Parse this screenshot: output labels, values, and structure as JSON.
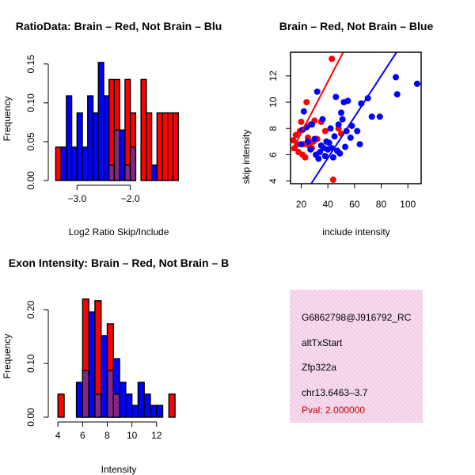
{
  "colors": {
    "red": "#ff0000",
    "blue": "#0000ff",
    "purple": "#8b2a8b",
    "black": "#000000"
  },
  "chart_data": [
    {
      "type": "bar",
      "title": "RatioData: Brain – Red, Not Brain – Blu",
      "xlabel": "Log2 Ratio Skip/Include",
      "ylabel": "Frequency",
      "xlim": [
        -3.45,
        -1.0
      ],
      "ylim": [
        0,
        0.16
      ],
      "xticks": [
        -3.0,
        -2.0
      ],
      "xtick_labels": [
        "−3.0",
        "−2.0"
      ],
      "yticks": [
        0,
        0.05,
        0.1,
        0.15
      ],
      "ytick_labels": [
        "0.00",
        "0.05",
        "0.10",
        "0.15"
      ],
      "bin_edges": [
        -3.4,
        -3.3,
        -3.2,
        -3.1,
        -3.0,
        -2.9,
        -2.8,
        -2.7,
        -2.6,
        -2.5,
        -2.4,
        -2.3,
        -2.2,
        -2.1,
        -2.0,
        -1.9,
        -1.8,
        -1.7,
        -1.6,
        -1.5,
        -1.4,
        -1.3,
        -1.2,
        -1.1
      ],
      "series": [
        {
          "name": "Brain",
          "color": "red",
          "values": [
            0.043,
            0.0,
            0.0,
            0.0,
            0.0,
            0.0,
            0.0,
            0.0,
            0.0,
            0.0,
            0.13,
            0.13,
            0.0,
            0.13,
            0.087,
            0.0,
            0.13,
            0.087,
            0.0,
            0.087,
            0.087,
            0.087,
            0.087
          ]
        },
        {
          "name": "Not Brain",
          "color": "blue",
          "values": [
            0.0,
            0.043,
            0.109,
            0.043,
            0.087,
            0.043,
            0.109,
            0.087,
            0.152,
            0.109,
            0.02,
            0.065,
            0.065,
            0.02,
            0.043,
            0.0,
            0.0,
            0.0,
            0.02,
            0.0,
            0.0,
            0.0,
            0.0
          ]
        }
      ]
    },
    {
      "type": "scatter",
      "title": "Brain – Red, Not Brain – Blue",
      "xlabel": "include intensity",
      "ylabel": "skip intensity",
      "xlim": [
        12,
        110
      ],
      "ylim": [
        3.8,
        13.8
      ],
      "xticks": [
        20,
        40,
        60,
        80,
        100
      ],
      "xtick_labels": [
        "20",
        "40",
        "60",
        "80",
        "100"
      ],
      "yticks": [
        4,
        6,
        8,
        10,
        12
      ],
      "ytick_labels": [
        "4",
        "6",
        "8",
        "10",
        "12"
      ],
      "series": [
        {
          "name": "Brain",
          "color": "red",
          "points": [
            [
              14,
              7.1
            ],
            [
              15,
              6.5
            ],
            [
              16,
              7.5
            ],
            [
              17,
              6.8
            ],
            [
              18,
              6.2
            ],
            [
              19,
              7.8
            ],
            [
              20,
              8.5
            ],
            [
              21,
              6.0
            ],
            [
              22,
              6.8
            ],
            [
              23,
              5.8
            ],
            [
              24,
              10.0
            ],
            [
              25,
              7.3
            ],
            [
              26,
              6.7
            ],
            [
              27,
              8.3
            ],
            [
              28,
              6.5
            ],
            [
              29,
              7.0
            ],
            [
              30,
              8.6
            ],
            [
              32,
              7.2
            ],
            [
              35,
              8.5
            ],
            [
              38,
              7.8
            ],
            [
              43,
              13.3
            ],
            [
              44,
              4.1
            ],
            [
              48,
              8.0
            ],
            [
              50,
              7.6
            ]
          ],
          "fit": [
            [
              13,
              6.3
            ],
            [
              51.5,
              13.8
            ]
          ]
        },
        {
          "name": "Not Brain",
          "color": "blue",
          "points": [
            [
              20,
              6.8
            ],
            [
              21,
              7.9
            ],
            [
              22,
              9.3
            ],
            [
              24,
              8.1
            ],
            [
              25,
              7.0
            ],
            [
              27,
              6.4
            ],
            [
              28,
              8.3
            ],
            [
              30,
              7.2
            ],
            [
              31,
              6.0
            ],
            [
              32,
              10.8
            ],
            [
              33,
              5.7
            ],
            [
              34,
              6.2
            ],
            [
              35,
              6.7
            ],
            [
              36,
              8.7
            ],
            [
              37,
              6.5
            ],
            [
              38,
              5.9
            ],
            [
              39,
              7.0
            ],
            [
              40,
              6.4
            ],
            [
              41,
              6.9
            ],
            [
              42,
              8.0
            ],
            [
              43,
              6.5
            ],
            [
              44,
              5.8
            ],
            [
              45,
              7.4
            ],
            [
              46,
              10.4
            ],
            [
              47,
              6.3
            ],
            [
              48,
              8.3
            ],
            [
              49,
              6.1
            ],
            [
              50,
              9.2
            ],
            [
              51,
              8.7
            ],
            [
              52,
              10.0
            ],
            [
              53,
              6.6
            ],
            [
              54,
              7.8
            ],
            [
              55,
              10.1
            ],
            [
              57,
              7.3
            ],
            [
              58,
              8.2
            ],
            [
              62,
              7.8
            ],
            [
              64,
              6.8
            ],
            [
              65,
              9.9
            ],
            [
              70,
              10.3
            ],
            [
              73,
              8.9
            ],
            [
              79,
              8.9
            ],
            [
              91,
              11.9
            ],
            [
              92,
              10.6
            ],
            [
              107,
              11.4
            ]
          ],
          "fit": [
            [
              27.5,
              3.8
            ],
            [
              91.5,
              13.8
            ]
          ]
        }
      ]
    },
    {
      "type": "bar",
      "title": "Exon Intensity: Brain – Red, Not Brain – B",
      "xlabel": "Intensity",
      "ylabel": "Frequency",
      "xlim": [
        3.6,
        14.2
      ],
      "ylim": [
        0,
        0.23
      ],
      "xticks": [
        4,
        6,
        8,
        10,
        12
      ],
      "xtick_labels": [
        "4",
        "6",
        "8",
        "10",
        "12"
      ],
      "yticks": [
        0,
        0.1,
        0.2
      ],
      "ytick_labels": [
        "0.00",
        "0.10",
        "0.20"
      ],
      "bin_edges": [
        4.0,
        4.5,
        5.0,
        5.5,
        6.0,
        6.5,
        7.0,
        7.5,
        8.0,
        8.5,
        9.0,
        9.5,
        10.0,
        10.5,
        11.0,
        11.5,
        12.0,
        12.5,
        13.0,
        13.5
      ],
      "series": [
        {
          "name": "Brain",
          "color": "red",
          "values": [
            0.043,
            0.0,
            0.0,
            0.0,
            0.22,
            0.0,
            0.217,
            0.0,
            0.174,
            0.043,
            0.0,
            0.0,
            0.0,
            0.0,
            0.0,
            0.0,
            0.0,
            0.0,
            0.043
          ]
        },
        {
          "name": "Not Brain",
          "color": "blue",
          "values": [
            0.0,
            0.0,
            0.0,
            0.065,
            0.087,
            0.196,
            0.043,
            0.152,
            0.087,
            0.109,
            0.065,
            0.043,
            0.022,
            0.065,
            0.043,
            0.022,
            0.022,
            0.0,
            0.0
          ]
        }
      ]
    }
  ],
  "info": {
    "id": "G6862798@J916792_RC",
    "type": "altTxStart",
    "gene": "Zfp322a",
    "location": "chr13.6463–3.7",
    "pval": "Pval: 2.000000"
  }
}
